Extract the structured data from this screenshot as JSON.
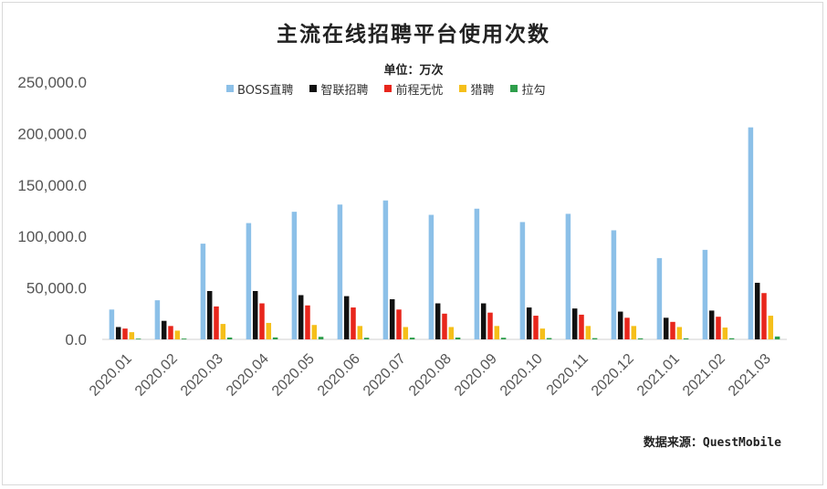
{
  "chart_data": {
    "type": "bar",
    "title": "主流在线招聘平台使用次数",
    "subtitle": "单位：万次",
    "source": "数据来源：QuestMobile",
    "categories": [
      "2020.01",
      "2020.02",
      "2020.03",
      "2020.04",
      "2020.05",
      "2020.06",
      "2020.07",
      "2020.08",
      "2020.09",
      "2020.10",
      "2020.11",
      "2020.12",
      "2021.01",
      "2021.02",
      "2021.03"
    ],
    "ylim": [
      0,
      250000
    ],
    "yticks": [
      "0.0",
      "50,000.0",
      "100,000.0",
      "150,000.0",
      "200,000.0",
      "250,000.0"
    ],
    "legend_position": "top",
    "grid": false,
    "series": [
      {
        "name": "BOSS直聘",
        "color": "#8cc0e8",
        "values": [
          29000,
          38000,
          93000,
          113000,
          124000,
          131000,
          135000,
          121000,
          127000,
          114000,
          122000,
          106000,
          79000,
          87000,
          206000
        ]
      },
      {
        "name": "智联招聘",
        "color": "#111111",
        "values": [
          12000,
          18000,
          47000,
          47000,
          43000,
          42000,
          39000,
          35000,
          35000,
          31000,
          30000,
          27000,
          21000,
          28000,
          55000
        ]
      },
      {
        "name": "前程无忧",
        "color": "#e8261c",
        "values": [
          10500,
          13000,
          32000,
          35000,
          33000,
          31000,
          29000,
          25000,
          26000,
          23000,
          24000,
          21000,
          17000,
          22000,
          45000
        ]
      },
      {
        "name": "猎聘",
        "color": "#f5bf1a",
        "values": [
          7000,
          8500,
          15000,
          16000,
          14000,
          13000,
          12000,
          12000,
          13000,
          10500,
          13000,
          13000,
          12000,
          11500,
          23000
        ]
      },
      {
        "name": "拉勾",
        "color": "#2e9e4b",
        "values": [
          700,
          800,
          1800,
          1900,
          2500,
          1600,
          1700,
          1800,
          1600,
          1300,
          1200,
          1000,
          1000,
          1100,
          2800
        ]
      }
    ]
  }
}
